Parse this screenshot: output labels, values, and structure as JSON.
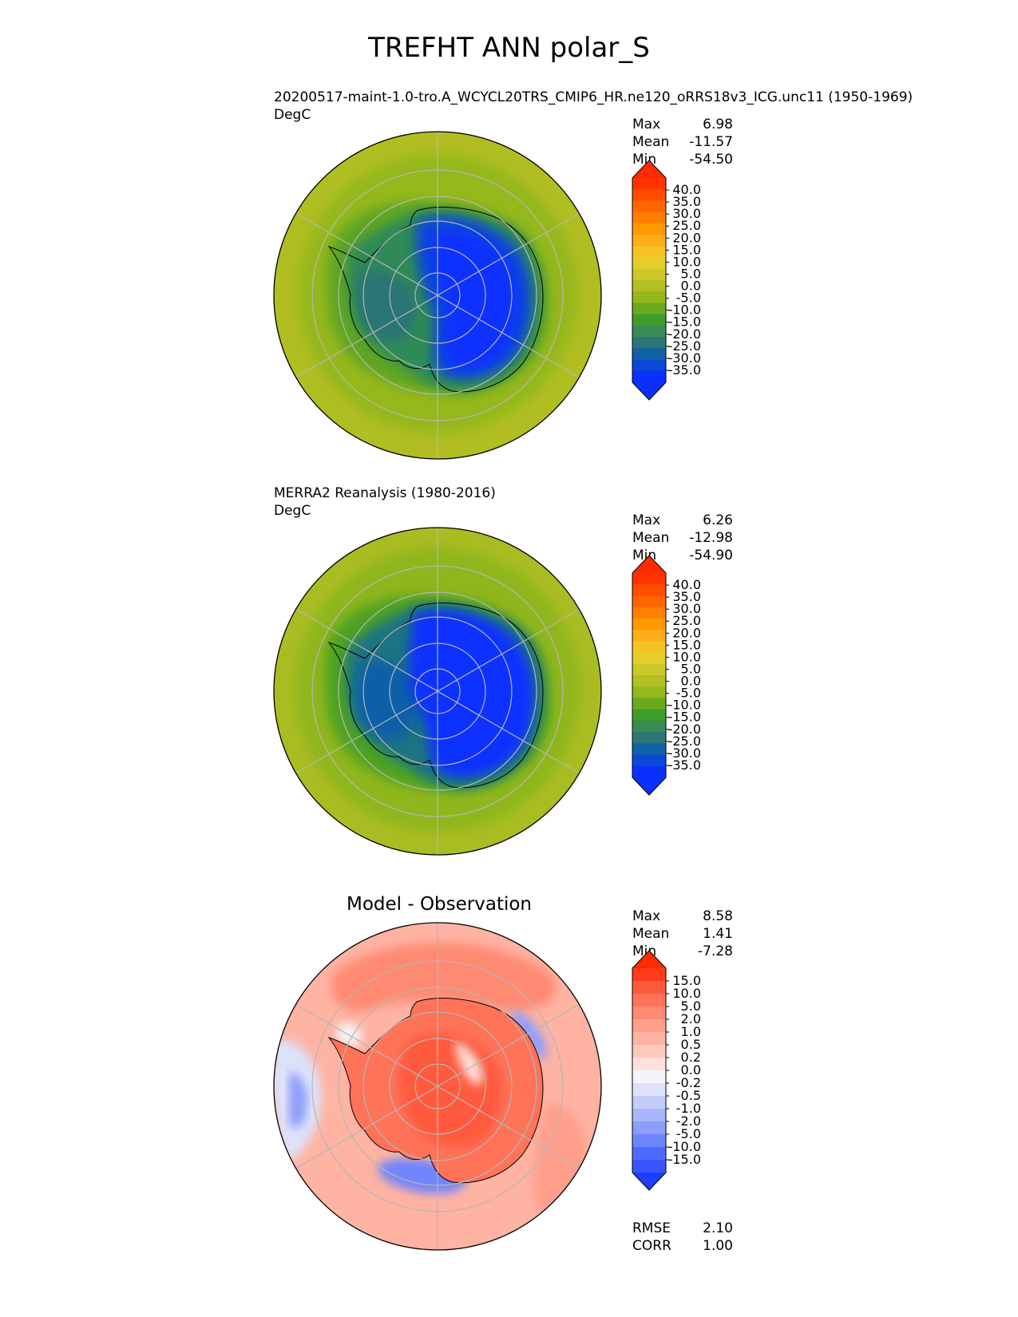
{
  "figure": {
    "title": "TREFHT ANN polar_S"
  },
  "panels": [
    {
      "subtitle": "20200517-maint-1.0-tro.A_WCYCL20TRS_CMIP6_HR.ne120_oRRS18v3_ICG.unc11 (1950-1969)",
      "units": "DegC",
      "stats": [
        {
          "label": "Max",
          "value": "6.98"
        },
        {
          "label": "Mean",
          "value": "-11.57"
        },
        {
          "label": "Min",
          "value": "-54.50"
        }
      ]
    },
    {
      "subtitle": "MERRA2 Reanalysis (1980-2016)",
      "units": "DegC",
      "stats": [
        {
          "label": "Max",
          "value": "6.26"
        },
        {
          "label": "Mean",
          "value": "-12.98"
        },
        {
          "label": "Min",
          "value": "-54.90"
        }
      ]
    },
    {
      "title": "Model - Observation",
      "stats": [
        {
          "label": "Max",
          "value": "8.58"
        },
        {
          "label": "Mean",
          "value": "1.41"
        },
        {
          "label": "Min",
          "value": "-7.28"
        }
      ],
      "metrics": [
        {
          "label": "RMSE",
          "value": "2.10"
        },
        {
          "label": "CORR",
          "value": "1.00"
        }
      ]
    }
  ],
  "colorbars": {
    "temperature": {
      "ticks": [
        "40.0",
        "35.0",
        "30.0",
        "25.0",
        "20.0",
        "15.0",
        "10.0",
        "5.0",
        "0.0",
        "-5.0",
        "-10.0",
        "-15.0",
        "-20.0",
        "-25.0",
        "-30.0",
        "-35.0"
      ],
      "colors": [
        "#ff3300",
        "#ff4d00",
        "#ff6600",
        "#ff7f00",
        "#ff9900",
        "#ffad1a",
        "#f6c325",
        "#e6cd2a",
        "#cdc82a",
        "#b2c023",
        "#95b81c",
        "#6aaa1f",
        "#3e9d2a",
        "#3a8a55",
        "#2b7575",
        "#1161a8",
        "#0b48d8",
        "#0a30ff"
      ],
      "over": "#ff2a00",
      "under": "#0a30ff"
    },
    "difference": {
      "ticks": [
        "15.0",
        "10.0",
        "5.0",
        "2.0",
        "1.0",
        "0.5",
        "0.2",
        "0.0",
        "-0.2",
        "-0.5",
        "-1.0",
        "-2.0",
        "-5.0",
        "-10.0",
        "-15.0"
      ],
      "colors": [
        "#ff3b1a",
        "#ff5a3c",
        "#ff7359",
        "#ff8a73",
        "#ff9f8c",
        "#ffb3a3",
        "#ffc8bd",
        "#ffe0da",
        "#f4f4fa",
        "#dde2fa",
        "#c4cdfa",
        "#a8b5fa",
        "#8c9dfa",
        "#6f85fb",
        "#4f6bfd",
        "#3a55ff"
      ],
      "over": "#ff2a00",
      "under": "#1d3dff"
    }
  },
  "chart_data": [
    {
      "type": "heatmap",
      "projection": "south polar stereographic",
      "title": "20200517-maint-1.0-tro.A_WCYCL20TRS_CMIP6_HR.ne120_oRRS18v3_ICG.unc11 (1950-1969)",
      "units": "DegC",
      "statistics": {
        "max": 6.98,
        "mean": -11.57,
        "min": -54.5
      },
      "colorbar_levels": [
        -35,
        -30,
        -25,
        -20,
        -15,
        -10,
        -5,
        0,
        5,
        10,
        15,
        20,
        25,
        30,
        35,
        40
      ],
      "colorbar_extend": "both",
      "grid": true
    },
    {
      "type": "heatmap",
      "projection": "south polar stereographic",
      "title": "MERRA2 Reanalysis (1980-2016)",
      "units": "DegC",
      "statistics": {
        "max": 6.26,
        "mean": -12.98,
        "min": -54.9
      },
      "colorbar_levels": [
        -35,
        -30,
        -25,
        -20,
        -15,
        -10,
        -5,
        0,
        5,
        10,
        15,
        20,
        25,
        30,
        35,
        40
      ],
      "colorbar_extend": "both",
      "grid": true
    },
    {
      "type": "heatmap",
      "projection": "south polar stereographic",
      "title": "Model - Observation",
      "statistics": {
        "max": 8.58,
        "mean": 1.41,
        "min": -7.28
      },
      "metrics": {
        "RMSE": 2.1,
        "CORR": 1.0
      },
      "colorbar_levels": [
        -15,
        -10,
        -5,
        -2,
        -1,
        -0.5,
        -0.2,
        0,
        0.2,
        0.5,
        1,
        2,
        5,
        10,
        15
      ],
      "colorbar_extend": "both",
      "grid": true
    }
  ]
}
